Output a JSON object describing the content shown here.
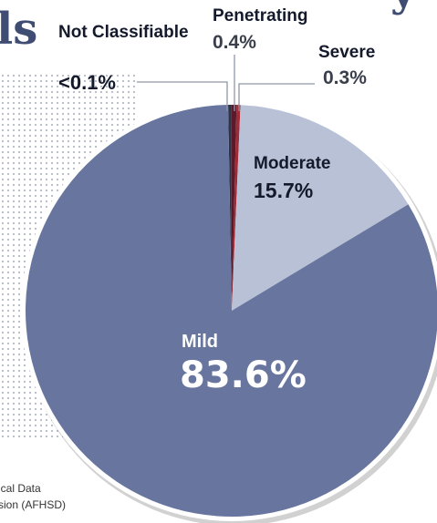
{
  "chart_data": {
    "type": "pie",
    "title_fragments": [
      "ls",
      "y"
    ],
    "slices": [
      {
        "label": "Not Classifiable",
        "value": 0.1,
        "display": "<0.1%",
        "color": "#2e3347"
      },
      {
        "label": "Penetrating",
        "value": 0.4,
        "display": "0.4%",
        "color": "#5b1a2a"
      },
      {
        "label": "Severe",
        "value": 0.3,
        "display": "0.3%",
        "color": "#a02a36"
      },
      {
        "label": "Moderate",
        "value": 15.7,
        "display": "15.7%",
        "color": "#b8c1d6"
      },
      {
        "label": "Mild",
        "value": 83.6,
        "display": "83.6%",
        "color": "#68769f"
      }
    ],
    "start_angle_deg": 0,
    "direction": "clockwise"
  },
  "source": {
    "line1": "ical Data",
    "line2": "sion (AFHSD)"
  }
}
